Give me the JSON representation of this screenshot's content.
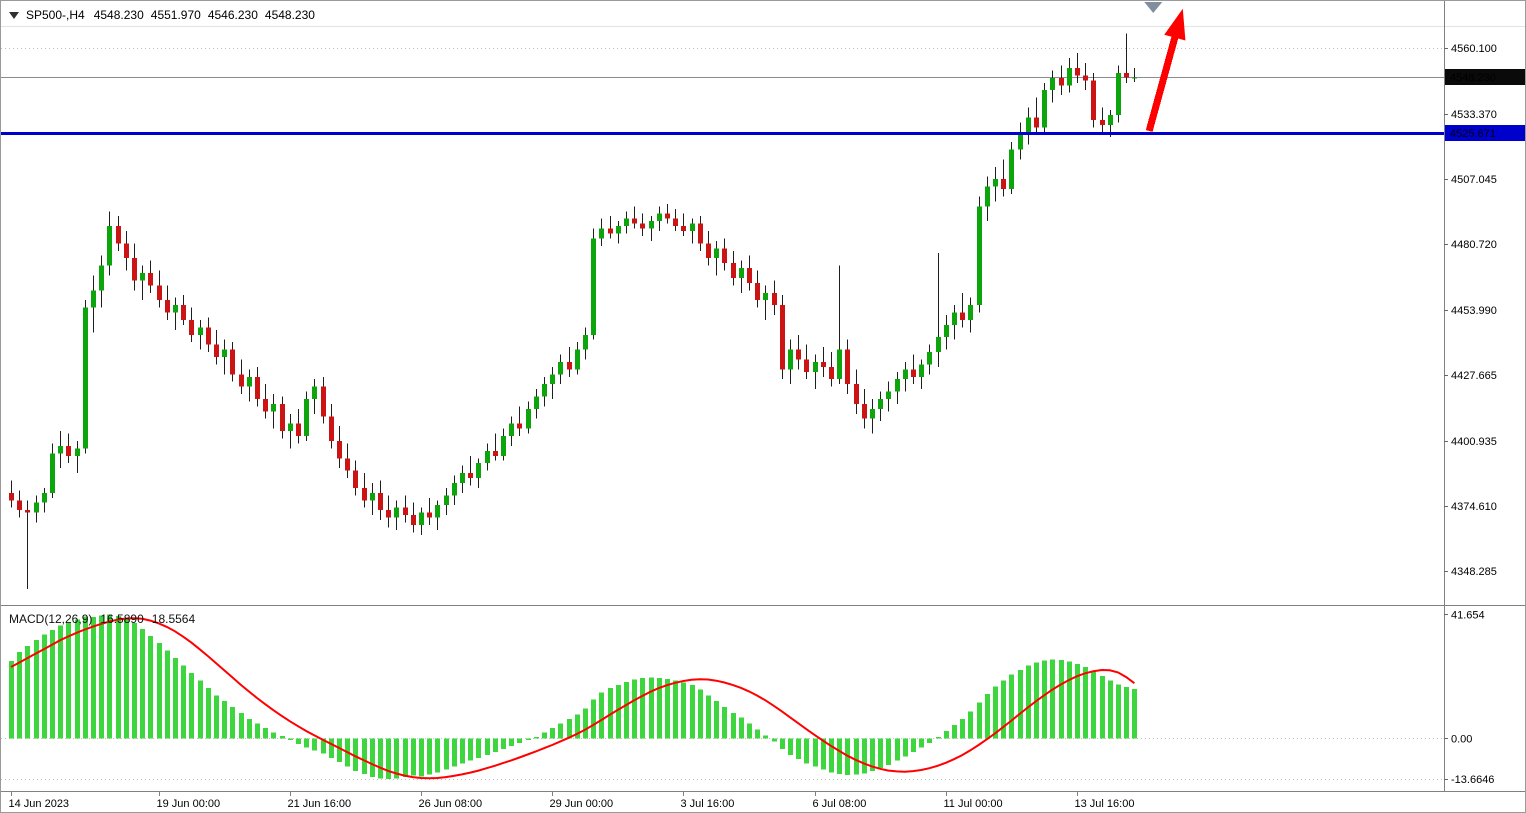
{
  "header": {
    "symbol_timeframe": "SP500-,H4",
    "open": "4548.230",
    "high": "4551.970",
    "low": "4546.230",
    "close": "4548.230"
  },
  "indicator": {
    "name": "MACD(12,26,9)",
    "macd_value": "16.5890",
    "signal_value": "18.5564"
  },
  "colors": {
    "bull": "#0CA50C",
    "bear": "#CC1414",
    "wick": "#1F1F1F",
    "macd_hist": "#3ED63E",
    "macd_signal": "#FF0000",
    "support_line": "#0000CD",
    "bid_line": "#8C8C8C",
    "bid_badge_bg": "#0A0A0A",
    "badge_text": "#FFFFFF",
    "arrow": "#FF0000",
    "marker": "#808FA0",
    "grid": "#BFBFBF",
    "separator": "#808080",
    "axis_text": "#000000"
  },
  "chart_data": [
    {
      "type": "candlestick",
      "symbol": "SP500-",
      "timeframe": "H4",
      "title": "SP500-,H4",
      "ylim": [
        4335,
        4569
      ],
      "grid_levels": [
        4560.1
      ],
      "y_axis_labels": [
        {
          "price": 4560.1,
          "text": "4560.100"
        },
        {
          "price": 4533.37,
          "text": "4533.370"
        },
        {
          "price": 4507.045,
          "text": "4507.045"
        },
        {
          "price": 4480.72,
          "text": "4480.720"
        },
        {
          "price": 4453.99,
          "text": "4453.990"
        },
        {
          "price": 4427.665,
          "text": "4427.665"
        },
        {
          "price": 4400.935,
          "text": "4400.935"
        },
        {
          "price": 4374.61,
          "text": "4374.610"
        },
        {
          "price": 4348.285,
          "text": "4348.285"
        }
      ],
      "bid": {
        "price": 4548.23,
        "text": "4548.230"
      },
      "support_line": {
        "price": 4525.671,
        "text": "4525.671"
      },
      "x_axis_labels": [
        {
          "bar": 0,
          "text": "14 Jun 2023"
        },
        {
          "bar": 18,
          "text": "19 Jun 00:00"
        },
        {
          "bar": 34,
          "text": "21 Jun 16:00"
        },
        {
          "bar": 50,
          "text": "26 Jun 08:00"
        },
        {
          "bar": 66,
          "text": "29 Jun 00:00"
        },
        {
          "bar": 82,
          "text": "3 Jul 16:00"
        },
        {
          "bar": 98,
          "text": "6 Jul 08:00"
        },
        {
          "bar": 114,
          "text": "11 Jul 00:00"
        },
        {
          "bar": 130,
          "text": "13 Jul 16:00"
        }
      ],
      "candles": [
        [
          4380,
          4385,
          4374,
          4377
        ],
        [
          4377,
          4381,
          4370,
          4373
        ],
        [
          4373,
          4377,
          4341,
          4372
        ],
        [
          4372,
          4379,
          4368,
          4376
        ],
        [
          4376,
          4382,
          4372,
          4380
        ],
        [
          4380,
          4400,
          4378,
          4396
        ],
        [
          4396,
          4405,
          4390,
          4399
        ],
        [
          4399,
          4404,
          4392,
          4395
        ],
        [
          4395,
          4401,
          4388,
          4398
        ],
        [
          4398,
          4458,
          4396,
          4455
        ],
        [
          4455,
          4468,
          4445,
          4462
        ],
        [
          4462,
          4476,
          4455,
          4472
        ],
        [
          4472,
          4494,
          4468,
          4488
        ],
        [
          4488,
          4492,
          4478,
          4481
        ],
        [
          4481,
          4486,
          4470,
          4475
        ],
        [
          4475,
          4481,
          4462,
          4466
        ],
        [
          4466,
          4472,
          4458,
          4469
        ],
        [
          4469,
          4474,
          4461,
          4464
        ],
        [
          4464,
          4470,
          4455,
          4458
        ],
        [
          4458,
          4464,
          4450,
          4453
        ],
        [
          4453,
          4459,
          4446,
          4456
        ],
        [
          4456,
          4460,
          4448,
          4450
        ],
        [
          4450,
          4455,
          4441,
          4444
        ],
        [
          4444,
          4450,
          4438,
          4447
        ],
        [
          4447,
          4451,
          4437,
          4440
        ],
        [
          4440,
          4446,
          4432,
          4435
        ],
        [
          4435,
          4442,
          4428,
          4438
        ],
        [
          4438,
          4441,
          4425,
          4428
        ],
        [
          4428,
          4434,
          4420,
          4423
        ],
        [
          4423,
          4430,
          4417,
          4427
        ],
        [
          4427,
          4431,
          4415,
          4418
        ],
        [
          4418,
          4424,
          4410,
          4413
        ],
        [
          4413,
          4420,
          4406,
          4416
        ],
        [
          4416,
          4419,
          4402,
          4405
        ],
        [
          4405,
          4412,
          4398,
          4408
        ],
        [
          4408,
          4414,
          4400,
          4403
        ],
        [
          4403,
          4421,
          4401,
          4418
        ],
        [
          4418,
          4426,
          4412,
          4423
        ],
        [
          4423,
          4427,
          4408,
          4411
        ],
        [
          4411,
          4416,
          4398,
          4401
        ],
        [
          4401,
          4407,
          4390,
          4394
        ],
        [
          4394,
          4400,
          4386,
          4389
        ],
        [
          4389,
          4393,
          4379,
          4382
        ],
        [
          4382,
          4388,
          4374,
          4377
        ],
        [
          4377,
          4384,
          4371,
          4380
        ],
        [
          4380,
          4385,
          4369,
          4373
        ],
        [
          4373,
          4379,
          4366,
          4370
        ],
        [
          4370,
          4377,
          4365,
          4374
        ],
        [
          4374,
          4379,
          4368,
          4371
        ],
        [
          4371,
          4376,
          4364,
          4367
        ],
        [
          4367,
          4374,
          4363,
          4372
        ],
        [
          4372,
          4378,
          4367,
          4370
        ],
        [
          4370,
          4377,
          4365,
          4375
        ],
        [
          4375,
          4382,
          4371,
          4379
        ],
        [
          4379,
          4387,
          4375,
          4384
        ],
        [
          4384,
          4391,
          4380,
          4388
        ],
        [
          4388,
          4395,
          4383,
          4386
        ],
        [
          4386,
          4394,
          4382,
          4392
        ],
        [
          4392,
          4400,
          4389,
          4397
        ],
        [
          4397,
          4404,
          4393,
          4395
        ],
        [
          4395,
          4406,
          4393,
          4403
        ],
        [
          4403,
          4411,
          4399,
          4408
        ],
        [
          4408,
          4415,
          4403,
          4406
        ],
        [
          4406,
          4417,
          4404,
          4414
        ],
        [
          4414,
          4422,
          4410,
          4419
        ],
        [
          4419,
          4427,
          4415,
          4424
        ],
        [
          4424,
          4431,
          4418,
          4428
        ],
        [
          4428,
          4436,
          4424,
          4433
        ],
        [
          4433,
          4439,
          4427,
          4430
        ],
        [
          4430,
          4441,
          4428,
          4438
        ],
        [
          4438,
          4447,
          4434,
          4444
        ],
        [
          4444,
          4487,
          4442,
          4483
        ],
        [
          4483,
          4491,
          4480,
          4487
        ],
        [
          4487,
          4492,
          4483,
          4485
        ],
        [
          4485,
          4490,
          4481,
          4488
        ],
        [
          4488,
          4494,
          4485,
          4491
        ],
        [
          4491,
          4496,
          4487,
          4489
        ],
        [
          4489,
          4493,
          4484,
          4487
        ],
        [
          4487,
          4492,
          4482,
          4490
        ],
        [
          4490,
          4496,
          4486,
          4493
        ],
        [
          4493,
          4497,
          4489,
          4491
        ],
        [
          4491,
          4495,
          4486,
          4488
        ],
        [
          4488,
          4493,
          4484,
          4486
        ],
        [
          4486,
          4491,
          4481,
          4489
        ],
        [
          4489,
          4492,
          4478,
          4481
        ],
        [
          4481,
          4486,
          4472,
          4475
        ],
        [
          4475,
          4482,
          4468,
          4479
        ],
        [
          4479,
          4483,
          4470,
          4473
        ],
        [
          4473,
          4478,
          4464,
          4467
        ],
        [
          4467,
          4474,
          4461,
          4471
        ],
        [
          4471,
          4476,
          4462,
          4465
        ],
        [
          4465,
          4470,
          4455,
          4458
        ],
        [
          4458,
          4464,
          4450,
          4461
        ],
        [
          4461,
          4466,
          4452,
          4456
        ],
        [
          4456,
          4460,
          4426,
          4430
        ],
        [
          4430,
          4442,
          4424,
          4438
        ],
        [
          4438,
          4444,
          4430,
          4434
        ],
        [
          4434,
          4440,
          4426,
          4429
        ],
        [
          4429,
          4436,
          4422,
          4433
        ],
        [
          4433,
          4439,
          4427,
          4431
        ],
        [
          4431,
          4437,
          4423,
          4426
        ],
        [
          4426,
          4472,
          4424,
          4438
        ],
        [
          4438,
          4442,
          4420,
          4424
        ],
        [
          4424,
          4430,
          4412,
          4416
        ],
        [
          4416,
          4422,
          4406,
          4410
        ],
        [
          4410,
          4418,
          4404,
          4414
        ],
        [
          4414,
          4421,
          4409,
          4418
        ],
        [
          4418,
          4425,
          4413,
          4421
        ],
        [
          4421,
          4429,
          4416,
          4426
        ],
        [
          4426,
          4433,
          4421,
          4430
        ],
        [
          4430,
          4436,
          4424,
          4427
        ],
        [
          4427,
          4434,
          4422,
          4432
        ],
        [
          4432,
          4440,
          4428,
          4437
        ],
        [
          4437,
          4477,
          4431,
          4443
        ],
        [
          4443,
          4452,
          4438,
          4448
        ],
        [
          4448,
          4456,
          4442,
          4453
        ],
        [
          4453,
          4461,
          4447,
          4450
        ],
        [
          4450,
          4459,
          4445,
          4456
        ],
        [
          4456,
          4500,
          4453,
          4496
        ],
        [
          4496,
          4508,
          4490,
          4504
        ],
        [
          4504,
          4512,
          4498,
          4507
        ],
        [
          4507,
          4515,
          4500,
          4503
        ],
        [
          4503,
          4522,
          4501,
          4519
        ],
        [
          4519,
          4530,
          4515,
          4526
        ],
        [
          4526,
          4536,
          4521,
          4532
        ],
        [
          4532,
          4540,
          4526,
          4528
        ],
        [
          4528,
          4546,
          4525,
          4543
        ],
        [
          4543,
          4551,
          4538,
          4548
        ],
        [
          4548,
          4553,
          4541,
          4545
        ],
        [
          4545,
          4556,
          4542,
          4552
        ],
        [
          4552,
          4558,
          4546,
          4549
        ],
        [
          4549,
          4554,
          4543,
          4547
        ],
        [
          4547,
          4550,
          4528,
          4531
        ],
        [
          4531,
          4536,
          4526,
          4529
        ],
        [
          4529,
          4535,
          4524,
          4533
        ],
        [
          4533,
          4553,
          4530,
          4550
        ],
        [
          4550,
          4566,
          4546,
          4548.2
        ],
        [
          4548.23,
          4551.97,
          4546.23,
          4548.23
        ]
      ],
      "arrow": {
        "from_bar": 138.8,
        "from_price": 4526.5,
        "to_bar": 142.9,
        "to_price": 4576
      },
      "marker_bar": 139.3
    },
    {
      "type": "macd",
      "title": "MACD(12,26,9) 16.5890 18.5564",
      "ylim": [
        -17,
        43.5
      ],
      "levels": [
        {
          "value": 41.654,
          "text": "41.654"
        },
        {
          "value": 0,
          "text": "0.00"
        },
        {
          "value": -13.6646,
          "text": "-13.6646"
        }
      ],
      "grid_levels": [
        0,
        -13.6646
      ],
      "histogram": [
        26,
        29,
        31,
        33,
        35,
        36.5,
        38,
        39,
        40,
        41,
        40.8,
        41.3,
        41.6,
        41.2,
        40.2,
        38.8,
        36.8,
        34.5,
        32,
        29.5,
        27,
        24.5,
        22,
        19.5,
        17,
        14.5,
        12.5,
        10.5,
        8.5,
        6.5,
        5,
        3.5,
        2,
        0.8,
        -0.5,
        -1.8,
        -3,
        -4,
        -5,
        -6.5,
        -8,
        -9.5,
        -11,
        -12,
        -13,
        -13.5,
        -13.66,
        -13.4,
        -13,
        -12.5,
        -12.8,
        -12.2,
        -11.5,
        -10.5,
        -9.5,
        -8.5,
        -7.5,
        -6.5,
        -5.5,
        -4.5,
        -3.5,
        -2.5,
        -1.5,
        -0.5,
        0.5,
        2,
        3.5,
        5,
        6.5,
        8,
        10,
        13,
        15.5,
        17,
        18,
        19,
        19.8,
        20.3,
        20.5,
        20.3,
        20,
        19.5,
        18.8,
        18,
        16.5,
        14.5,
        12.5,
        10.5,
        8.5,
        7,
        5,
        3,
        1,
        -1,
        -3.5,
        -5.5,
        -7,
        -8.5,
        -9.5,
        -10.5,
        -11.5,
        -12,
        -12.3,
        -12.2,
        -11.8,
        -11,
        -10,
        -9,
        -7.5,
        -6,
        -4.5,
        -3,
        -1.5,
        0.5,
        2.5,
        4.5,
        6.5,
        9,
        12,
        15,
        17.5,
        19.5,
        21.5,
        23,
        24.5,
        25.5,
        26.2,
        26.5,
        26.3,
        25.8,
        25,
        24,
        22.5,
        21,
        19.5,
        18.2,
        17.3,
        16.589
      ],
      "signal": [
        24,
        25.5,
        27,
        28.5,
        30,
        31.5,
        33,
        34.3,
        35.5,
        36.6,
        37.6,
        38.5,
        39.3,
        39.9,
        40.3,
        40.4,
        40.2,
        39.6,
        38.7,
        37.5,
        36,
        34.2,
        32.2,
        30,
        27.7,
        25.3,
        22.9,
        20.5,
        18.1,
        15.8,
        13.6,
        11.5,
        9.5,
        7.6,
        5.8,
        4.1,
        2.5,
        1,
        -0.4,
        -1.8,
        -3.2,
        -4.6,
        -6,
        -7.3,
        -8.6,
        -9.8,
        -10.9,
        -11.8,
        -12.5,
        -13,
        -13.3,
        -13.4,
        -13.3,
        -13,
        -12.6,
        -12.1,
        -11.5,
        -10.8,
        -10,
        -9.2,
        -8.3,
        -7.4,
        -6.4,
        -5.4,
        -4.4,
        -3.3,
        -2.2,
        -1,
        0.2,
        1.5,
        2.9,
        4.5,
        6.2,
        7.9,
        9.6,
        11.2,
        12.8,
        14.3,
        15.7,
        16.9,
        17.9,
        18.7,
        19.3,
        19.7,
        19.9,
        19.8,
        19.4,
        18.8,
        18,
        17,
        15.8,
        14.4,
        12.8,
        11,
        9.1,
        7.1,
        5.1,
        3.1,
        1.2,
        -0.7,
        -2.5,
        -4.2,
        -5.8,
        -7.2,
        -8.4,
        -9.4,
        -10.2,
        -10.8,
        -11.1,
        -11.2,
        -11,
        -10.6,
        -10,
        -9.2,
        -8.2,
        -7,
        -5.6,
        -4,
        -2.2,
        -0.3,
        1.7,
        3.8,
        6,
        8.2,
        10.4,
        12.5,
        14.5,
        16.4,
        18.1,
        19.6,
        20.9,
        21.9,
        22.6,
        23,
        22.9,
        22.2,
        20.6,
        18.5564
      ]
    }
  ]
}
